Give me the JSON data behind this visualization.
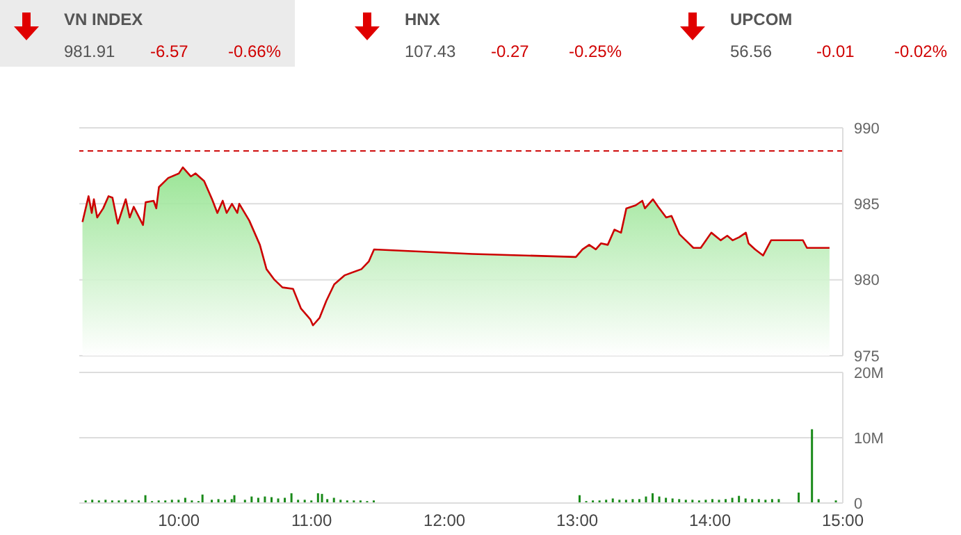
{
  "chart_data": [
    {
      "type": "other",
      "categories": [
        "VN INDEX",
        "HNX",
        "UPCOM"
      ],
      "annotations": [
        "981.91",
        "-6.57",
        "-0.66%",
        "107.43",
        "-0.27",
        "-0.25%",
        "56.56",
        "-0.01",
        "-0.02%"
      ]
    },
    {
      "type": "area",
      "color": "#cc0000",
      "x": [
        9.274,
        9.32,
        9.344,
        9.36,
        9.385,
        9.43,
        9.47,
        9.5,
        9.54,
        9.6,
        9.63,
        9.66,
        9.73,
        9.75,
        9.81,
        9.83,
        9.85,
        9.92,
        10.0,
        10.03,
        10.09,
        10.125,
        10.19,
        10.25,
        10.29,
        10.33,
        10.36,
        10.4,
        10.44,
        10.455,
        10.53,
        10.61,
        10.66,
        10.72,
        10.78,
        10.86,
        10.92,
        10.99,
        11.01,
        11.06,
        11.11,
        11.17,
        11.25,
        11.375,
        11.43,
        11.47,
        12.21,
        12.99,
        13.04,
        13.09,
        13.14,
        13.18,
        13.23,
        13.28,
        13.33,
        13.37,
        13.44,
        13.49,
        13.51,
        13.57,
        13.61,
        13.67,
        13.71,
        13.77,
        13.84,
        13.875,
        13.93,
        14.01,
        14.08,
        14.13,
        14.17,
        14.22,
        14.27,
        14.29,
        14.34,
        14.4,
        14.46,
        14.7,
        14.73,
        14.9
      ],
      "values": [
        983.8,
        985.5,
        984.4,
        985.3,
        984.1,
        984.7,
        985.5,
        985.4,
        983.7,
        985.3,
        984.1,
        984.8,
        983.6,
        985.1,
        985.2,
        984.7,
        986.1,
        986.7,
        987.0,
        987.4,
        986.8,
        987.0,
        986.5,
        985.3,
        984.4,
        985.2,
        984.4,
        985.0,
        984.4,
        985.0,
        983.9,
        982.3,
        980.7,
        980.0,
        979.5,
        979.4,
        978.1,
        977.4,
        977.0,
        977.5,
        978.6,
        979.7,
        980.3,
        980.7,
        981.2,
        982.0,
        981.7,
        981.5,
        982.0,
        982.3,
        982.0,
        982.4,
        982.3,
        983.3,
        983.1,
        984.7,
        984.9,
        985.2,
        984.7,
        985.3,
        984.8,
        984.1,
        984.2,
        983.0,
        982.4,
        982.1,
        982.1,
        983.1,
        982.6,
        982.9,
        982.6,
        982.8,
        983.1,
        982.4,
        982.0,
        981.6,
        982.6,
        982.6,
        982.1,
        982.1
      ],
      "xlim": [
        9.25,
        15
      ],
      "ylim": [
        975,
        990
      ],
      "yticks": [
        975,
        980,
        985,
        990
      ],
      "grid": "y",
      "tick_labels": "y",
      "ref_lines": [
        {
          "axis": "y",
          "value": 988.48,
          "color": "#cc0000",
          "line_style": "dashed"
        }
      ]
    },
    {
      "type": "bar",
      "color": "#1a8a1a",
      "x": [
        9.3,
        9.35,
        9.4,
        9.45,
        9.5,
        9.55,
        9.6,
        9.65,
        9.7,
        9.75,
        9.8,
        9.85,
        9.9,
        9.95,
        10.0,
        10.05,
        10.1,
        10.15,
        10.18,
        10.25,
        10.3,
        10.35,
        10.4,
        10.42,
        10.5,
        10.55,
        10.6,
        10.65,
        10.7,
        10.75,
        10.8,
        10.85,
        10.9,
        10.95,
        11.0,
        11.05,
        11.08,
        11.12,
        11.17,
        11.22,
        11.27,
        11.32,
        11.37,
        11.42,
        11.47,
        13.02,
        13.07,
        13.12,
        13.17,
        13.22,
        13.27,
        13.32,
        13.37,
        13.42,
        13.47,
        13.52,
        13.57,
        13.62,
        13.67,
        13.72,
        13.77,
        13.82,
        13.87,
        13.92,
        13.97,
        14.02,
        14.07,
        14.12,
        14.17,
        14.22,
        14.27,
        14.32,
        14.37,
        14.42,
        14.47,
        14.52,
        14.67,
        14.77,
        14.82,
        14.95
      ],
      "values": [
        0.4,
        0.5,
        0.4,
        0.5,
        0.4,
        0.4,
        0.5,
        0.4,
        0.4,
        1.2,
        0.3,
        0.4,
        0.4,
        0.5,
        0.5,
        0.8,
        0.4,
        0.3,
        1.3,
        0.5,
        0.6,
        0.5,
        0.6,
        1.2,
        0.5,
        1.0,
        0.8,
        1.0,
        0.9,
        0.7,
        0.8,
        1.5,
        0.5,
        0.5,
        0.4,
        1.5,
        1.4,
        0.6,
        0.8,
        0.5,
        0.4,
        0.4,
        0.4,
        0.3,
        0.4,
        1.2,
        0.3,
        0.4,
        0.4,
        0.5,
        0.7,
        0.5,
        0.5,
        0.6,
        0.6,
        1.0,
        1.5,
        1.0,
        0.8,
        0.7,
        0.6,
        0.5,
        0.5,
        0.4,
        0.5,
        0.6,
        0.5,
        0.6,
        0.8,
        1.1,
        0.7,
        0.6,
        0.6,
        0.5,
        0.6,
        0.6,
        1.6,
        11.3,
        0.6,
        0.4
      ],
      "xlim": [
        9.25,
        15
      ],
      "xticks": [
        {
          "value": 10,
          "label": "10:00"
        },
        {
          "value": 11,
          "label": "11:00"
        },
        {
          "value": 12,
          "label": "12:00"
        },
        {
          "value": 13,
          "label": "13:00"
        },
        {
          "value": 14,
          "label": "14:00"
        },
        {
          "value": 15,
          "label": "15:00"
        }
      ],
      "ylim": [
        0,
        20
      ],
      "yticks": [
        0,
        {
          "value": 10,
          "label": "10M"
        },
        {
          "value": 20,
          "label": "20M"
        }
      ],
      "grid": "y"
    }
  ]
}
